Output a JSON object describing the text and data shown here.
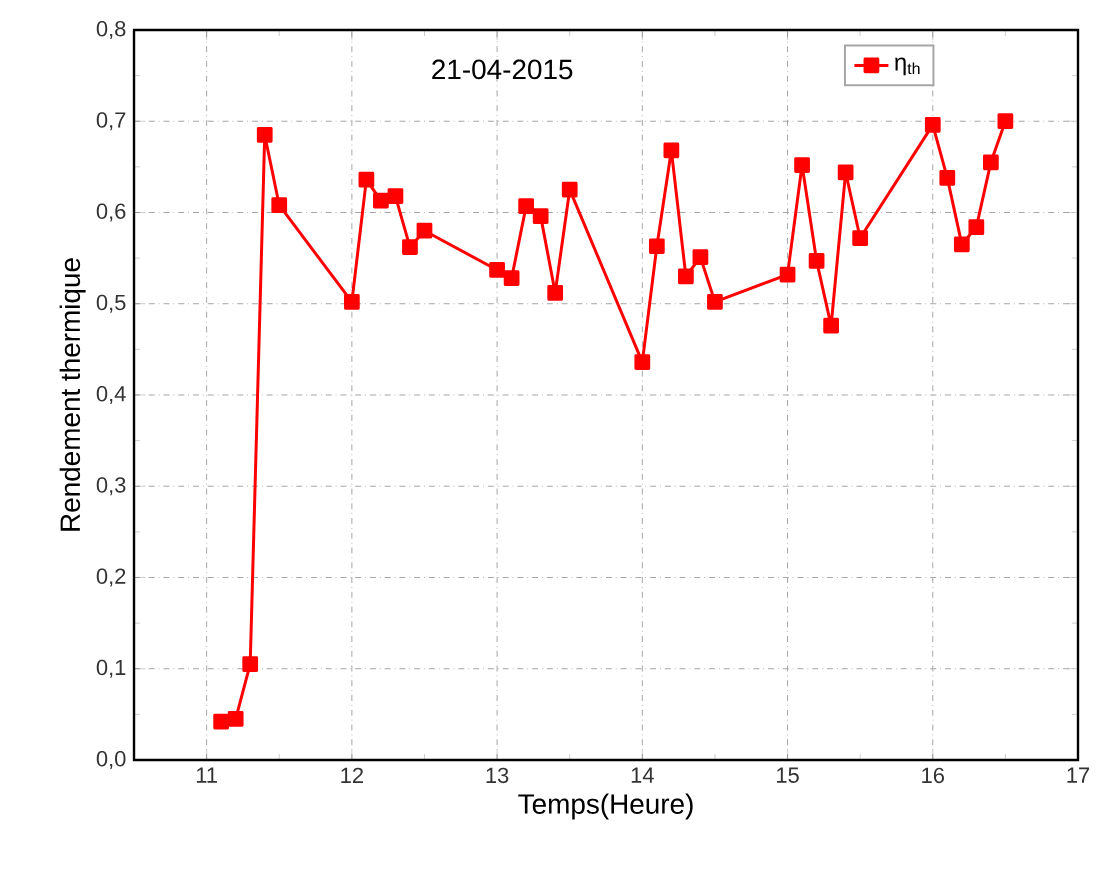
{
  "chart_data": {
    "type": "line",
    "title": "21-04-2015",
    "xlabel": "Temps(Heure)",
    "ylabel": "Rendement thermique",
    "x": [
      11.1,
      11.2,
      11.3,
      11.4,
      11.5,
      12.0,
      12.1,
      12.2,
      12.3,
      12.4,
      12.5,
      13.0,
      13.1,
      13.2,
      13.3,
      13.4,
      13.5,
      14.0,
      14.1,
      14.2,
      14.3,
      14.4,
      14.5,
      15.0,
      15.1,
      15.2,
      15.3,
      15.4,
      15.5,
      16.0,
      16.1,
      16.2,
      16.3,
      16.4,
      16.5
    ],
    "series": [
      {
        "name": "η$_{th}$",
        "color": "#ff0000",
        "values": [
          0.042,
          0.045,
          0.105,
          0.685,
          0.608,
          0.502,
          0.636,
          0.613,
          0.618,
          0.562,
          0.58,
          0.537,
          0.528,
          0.607,
          0.596,
          0.512,
          0.625,
          0.436,
          0.563,
          0.668,
          0.53,
          0.551,
          0.502,
          0.532,
          0.652,
          0.547,
          0.476,
          0.644,
          0.572,
          0.696,
          0.638,
          0.565,
          0.584,
          0.655,
          0.7
        ]
      }
    ],
    "xlim": [
      10.5,
      17
    ],
    "ylim": [
      0,
      0.8
    ],
    "xticks": [
      11,
      12,
      13,
      14,
      15,
      16,
      17
    ],
    "yticks": [
      {
        "value": 0,
        "label": "0,0"
      },
      {
        "value": 0.1,
        "label": "0,1"
      },
      {
        "value": 0.2,
        "label": "0,2"
      },
      {
        "value": 0.3,
        "label": "0,3"
      },
      {
        "value": 0.4,
        "label": "0,4"
      },
      {
        "value": 0.5,
        "label": "0,5"
      },
      {
        "value": 0.6,
        "label": "0,6"
      },
      {
        "value": 0.7,
        "label": "0,7"
      },
      {
        "value": 0.8,
        "label": "0,8"
      }
    ],
    "grid": true,
    "legend": "top right",
    "marker": "square",
    "line_style": "solid"
  }
}
